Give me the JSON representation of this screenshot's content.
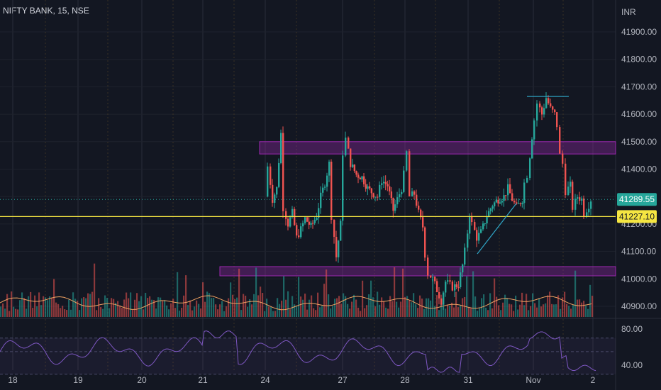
{
  "header": {
    "title": "NIFTY BANK, 15, NSE"
  },
  "price_axis": {
    "currency": "INR",
    "ticks": [
      "41900.00",
      "41800.00",
      "41700.00",
      "41600.00",
      "41500.00",
      "41400.00",
      "41200.00",
      "41100.00",
      "41000.00",
      "40900.00"
    ]
  },
  "rsi_axis": {
    "ticks": [
      "80.00",
      "40.00"
    ]
  },
  "time_axis": {
    "labels": [
      "18",
      "19",
      "20",
      "21",
      "24",
      "27",
      "28",
      "31",
      "Nov",
      "2"
    ]
  },
  "tags": {
    "last_price": "41289.55",
    "level_price": "41227.10"
  },
  "colors": {
    "background": "#131722",
    "up": "#26a69a",
    "down": "#ef5350",
    "zone": "#9c27b0",
    "level": "#f5e642",
    "rsi": "#7e57c2",
    "ma": "#f0a262",
    "trendline": "#2fa5c6"
  },
  "chart_data": {
    "type": "candlestick",
    "symbol": "NIFTY BANK",
    "interval": "15",
    "exchange": "NSE",
    "currency": "INR",
    "ylim": [
      40850,
      41980
    ],
    "grid": true,
    "days": [
      "18",
      "19",
      "20",
      "21",
      "24",
      "27",
      "28",
      "31",
      "Nov",
      "2"
    ],
    "session_path": [
      {
        "day": "24",
        "open": 41300,
        "high": 41530,
        "low": 41190,
        "close": 41270
      },
      {
        "day": "27",
        "open": 41230,
        "high": 41510,
        "low": 41060,
        "close": 41330
      },
      {
        "day": "28",
        "open": 41300,
        "high": 41460,
        "low": 41060,
        "close": 41220
      },
      {
        "day": "31",
        "open": 41190,
        "high": 41420,
        "low": 40920,
        "close": 41290
      },
      {
        "day": "Nov",
        "open": 41300,
        "high": 41670,
        "low": 41230,
        "close": 41340
      },
      {
        "day": "2",
        "open": 41320,
        "high": 41360,
        "low": 41200,
        "close": 41289.55
      }
    ],
    "last_price": 41289.55,
    "horizontal_level": 41227.1,
    "resistance_zones": [
      [
        41450,
        41500
      ],
      [
        41040,
        41060
      ]
    ],
    "rsi_levels": [
      80,
      40
    ]
  }
}
